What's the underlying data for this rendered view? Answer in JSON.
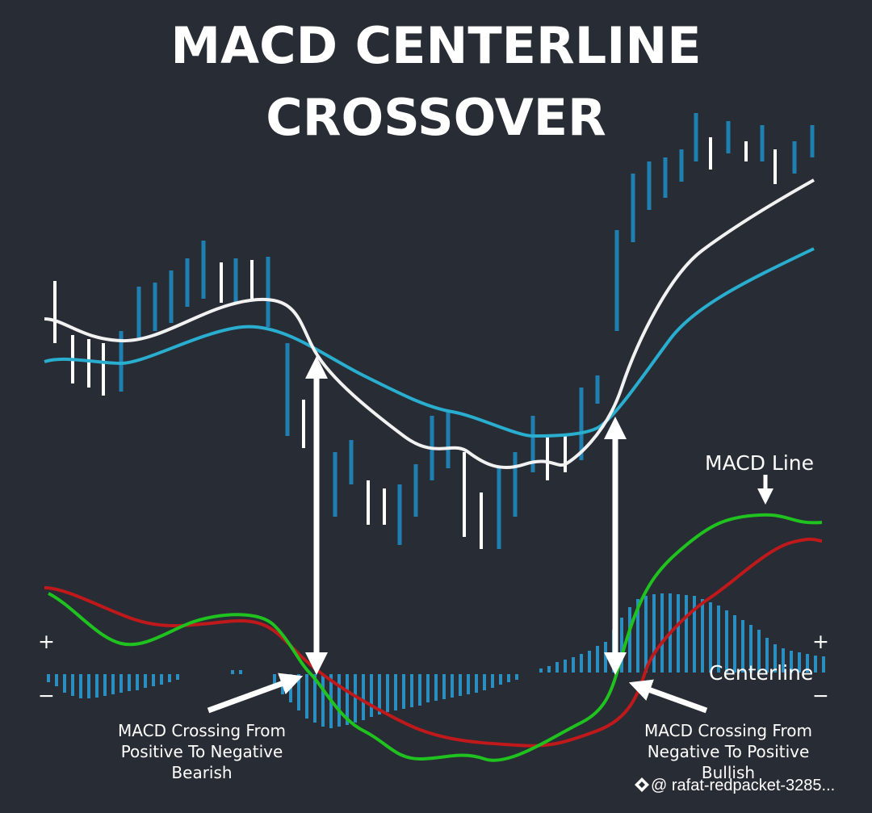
{
  "header": {
    "title": [
      "MACD CENTERLINE",
      "CROSSOVER"
    ]
  },
  "labels": {
    "macd_line": "MACD Line",
    "centerline": "Centerline",
    "plus": "+",
    "minus": "−"
  },
  "annotations": {
    "bearish": [
      "MACD Crossing From",
      "Positive To Negative",
      "Bearish"
    ],
    "bullish": [
      "MACD Crossing From",
      "Negative To Positive",
      "Bullish"
    ]
  },
  "watermark": "@ rafat-redpacket-3285..."
}
